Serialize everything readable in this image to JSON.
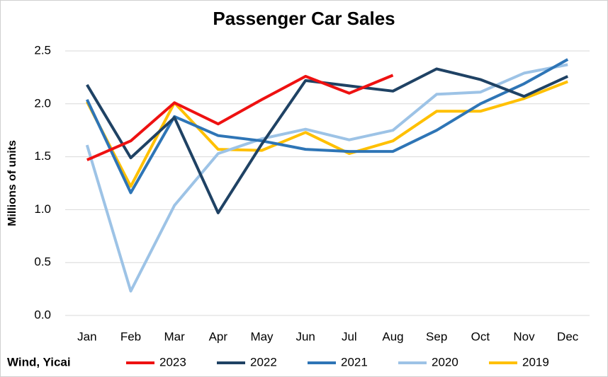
{
  "chart_data": {
    "type": "line",
    "title": "Passenger Car Sales",
    "y_label": "Millions of units",
    "source": "Wind, Yicai",
    "categories": [
      "Jan",
      "Feb",
      "Mar",
      "Apr",
      "May",
      "Jun",
      "Jul",
      "Aug",
      "Sep",
      "Oct",
      "Nov",
      "Dec"
    ],
    "series": [
      {
        "name": "2023",
        "color": "#ee1111",
        "values": [
          1.47,
          1.65,
          2.01,
          1.81,
          2.04,
          2.26,
          2.1,
          2.27,
          null,
          null,
          null,
          null
        ]
      },
      {
        "name": "2022",
        "color": "#1f4264",
        "values": [
          2.18,
          1.49,
          1.87,
          0.97,
          1.62,
          2.22,
          2.17,
          2.12,
          2.33,
          2.23,
          2.07,
          2.26
        ]
      },
      {
        "name": "2021",
        "color": "#2e75b6",
        "values": [
          2.04,
          1.16,
          1.88,
          1.7,
          1.65,
          1.57,
          1.55,
          1.55,
          1.75,
          2.0,
          2.19,
          2.42
        ]
      },
      {
        "name": "2020",
        "color": "#9dc3e6",
        "values": [
          1.61,
          0.23,
          1.04,
          1.53,
          1.67,
          1.76,
          1.66,
          1.75,
          2.09,
          2.11,
          2.29,
          2.37
        ]
      },
      {
        "name": "2019",
        "color": "#ffc000",
        "values": [
          2.02,
          1.22,
          2.01,
          1.57,
          1.56,
          1.73,
          1.53,
          1.65,
          1.93,
          1.93,
          2.05,
          2.21
        ]
      }
    ],
    "ylim": [
      0,
      2.5
    ],
    "yticks": [
      {
        "value": 0,
        "label": "0.0"
      },
      0.5,
      {
        "value": 1,
        "label": "1.0"
      },
      1.5,
      {
        "value": 2,
        "label": "2.0"
      },
      2.5
    ],
    "grid": true,
    "legend": "bottom"
  }
}
